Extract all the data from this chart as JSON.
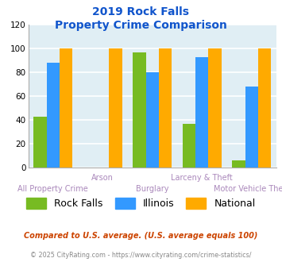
{
  "title_line1": "2019 Rock Falls",
  "title_line2": "Property Crime Comparison",
  "categories": [
    "All Property Crime",
    "Arson",
    "Burglary",
    "Larceny & Theft",
    "Motor Vehicle Theft"
  ],
  "rock_falls": [
    43,
    0,
    97,
    37,
    6
  ],
  "illinois": [
    88,
    0,
    80,
    93,
    68
  ],
  "national": [
    100,
    100,
    100,
    100,
    100
  ],
  "color_rock_falls": "#77bb22",
  "color_illinois": "#3399ff",
  "color_national": "#ffaa00",
  "color_title": "#1155cc",
  "color_xlabel_upper": "#aa88bb",
  "color_xlabel_lower": "#aa88bb",
  "color_bg_plot": "#e0eef4",
  "color_grid": "#ffffff",
  "ylim": [
    0,
    120
  ],
  "yticks": [
    0,
    20,
    40,
    60,
    80,
    100,
    120
  ],
  "legend_labels": [
    "Rock Falls",
    "Illinois",
    "National"
  ],
  "footnote1": "Compared to U.S. average. (U.S. average equals 100)",
  "footnote2": "© 2025 CityRating.com - https://www.cityrating.com/crime-statistics/",
  "color_footnote1": "#cc4400",
  "color_footnote2": "#888888",
  "upper_labels": [
    "",
    "Arson",
    "",
    "Larceny & Theft",
    ""
  ],
  "lower_labels": [
    "All Property Crime",
    "",
    "Burglary",
    "",
    "Motor Vehicle Theft"
  ]
}
